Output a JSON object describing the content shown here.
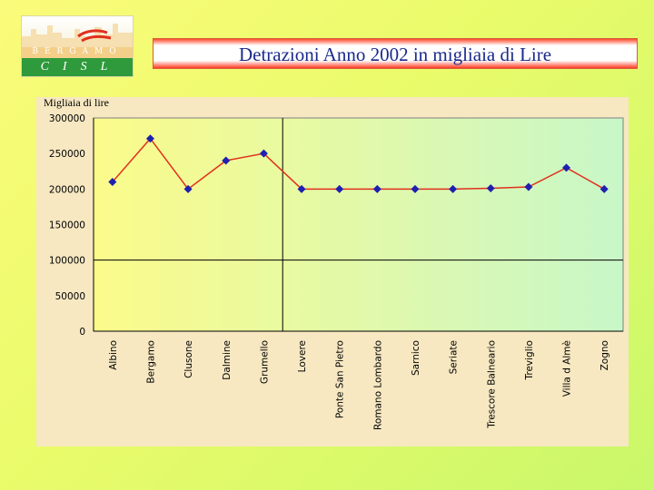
{
  "logo": {
    "city": "BERGAMO",
    "org": "CISL"
  },
  "slide": {
    "title": "Detrazioni  Anno 2002 in migliaia di Lire"
  },
  "colors": {
    "line": "#e0301e",
    "marker": "#1f1fb0",
    "plot_gradient_left": "#fbfb8a",
    "plot_gradient_right": "#c8f7c8"
  },
  "chart_data": {
    "type": "line",
    "title": "",
    "ylabel": "Migliaia di lire",
    "xlabel": "",
    "ylim": [
      0,
      300000
    ],
    "yticks": [
      0,
      50000,
      100000,
      150000,
      200000,
      250000,
      300000
    ],
    "grid": "horizontal and vertical at 100000 and after Grumello",
    "categories": [
      "Albino",
      "Bergamo",
      "Clusone",
      "Dalmine",
      "Grumello",
      "Lovere",
      "Ponte San Pietro",
      "Romano Lombardo",
      "Sarnico",
      "Seriate",
      "Trescore Balneario",
      "Treviglio",
      "Villa d Almè",
      "Zogno"
    ],
    "values": [
      210000,
      271000,
      200000,
      240000,
      250000,
      200000,
      200000,
      200000,
      200000,
      200000,
      201000,
      203000,
      230000,
      200000
    ]
  }
}
